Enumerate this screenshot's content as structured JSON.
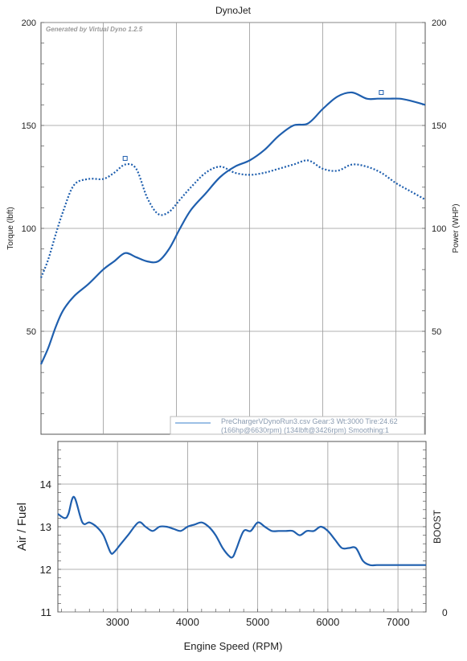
{
  "chart_data": [
    {
      "type": "line",
      "title": "DynoJet",
      "watermark": "Generated by Virtual Dyno 1.2.5",
      "ylabel_left": "Torque (lbft)",
      "ylabel_right": "Power (WHP)",
      "ylim": [
        0,
        200
      ],
      "xlim": [
        2150,
        7400
      ],
      "y_ticks": [
        "50",
        "100",
        "150",
        "200"
      ],
      "grid": true,
      "legend": {
        "placement": "bottom-right",
        "line1": "PreChargerVDynoRun3.csv Gear:3 Wt:3000 Tire:24.62",
        "line2": "(166hp@6630rpm) (134lbft@3426rpm) Smoothing:1"
      },
      "series": [
        {
          "style": "solid",
          "color": "#1f5fae",
          "x": [
            2150,
            2250,
            2350,
            2450,
            2600,
            2800,
            3000,
            3150,
            3300,
            3450,
            3600,
            3750,
            3900,
            4050,
            4200,
            4400,
            4600,
            4800,
            5000,
            5200,
            5400,
            5600,
            5800,
            6000,
            6200,
            6400,
            6600,
            6750,
            6900,
            7050,
            7200,
            7400
          ],
          "y": [
            34,
            42,
            52,
            60,
            67,
            73,
            80,
            84,
            88,
            86,
            84,
            84,
            90,
            100,
            109,
            117,
            125,
            130,
            133,
            138,
            145,
            150,
            151,
            158,
            164,
            166,
            163,
            163,
            163,
            163,
            162,
            160
          ]
        },
        {
          "style": "dotted",
          "color": "#1f5fae",
          "x": [
            2150,
            2250,
            2350,
            2450,
            2600,
            2800,
            3000,
            3150,
            3300,
            3450,
            3600,
            3750,
            3900,
            4050,
            4200,
            4400,
            4600,
            4800,
            5000,
            5200,
            5400,
            5600,
            5800,
            6000,
            6200,
            6400,
            6600,
            6800,
            7000,
            7200,
            7400
          ],
          "y": [
            76,
            85,
            97,
            108,
            121,
            124,
            124,
            127,
            131,
            129,
            115,
            107,
            108,
            114,
            120,
            127,
            130,
            127,
            126,
            127,
            129,
            131,
            133,
            129,
            128,
            131,
            130,
            127,
            122,
            118,
            114
          ]
        }
      ],
      "markers": [
        {
          "x": 3300,
          "y": 134
        },
        {
          "x": 6800,
          "y": 166
        }
      ]
    },
    {
      "type": "line",
      "ylabel_left": "Air / Fuel",
      "ylabel_right": "BOOST",
      "xlabel": "Engine Speed (RPM)",
      "ylim": [
        11,
        15
      ],
      "xlim": [
        2150,
        7400
      ],
      "y_ticks": [
        "11",
        "12",
        "13",
        "14"
      ],
      "right_ticks": [
        "0"
      ],
      "x_ticks": [
        "3000",
        "4000",
        "5000",
        "6000",
        "7000"
      ],
      "grid": true,
      "series": [
        {
          "style": "solid",
          "color": "#1f5fae",
          "x": [
            2150,
            2250,
            2300,
            2380,
            2500,
            2600,
            2700,
            2800,
            2900,
            2950,
            3050,
            3150,
            3300,
            3400,
            3500,
            3600,
            3700,
            3800,
            3900,
            4000,
            4100,
            4200,
            4300,
            4400,
            4500,
            4600,
            4650,
            4700,
            4800,
            4900,
            5000,
            5100,
            5200,
            5300,
            5400,
            5500,
            5600,
            5700,
            5800,
            5900,
            6000,
            6100,
            6200,
            6300,
            6400,
            6500,
            6600,
            6700,
            6800,
            7400
          ],
          "y": [
            13.3,
            13.2,
            13.3,
            13.7,
            13.1,
            13.1,
            13.0,
            12.8,
            12.4,
            12.4,
            12.6,
            12.8,
            13.1,
            13.0,
            12.9,
            13.0,
            13.0,
            12.95,
            12.9,
            13.0,
            13.05,
            13.1,
            13.0,
            12.8,
            12.5,
            12.3,
            12.3,
            12.5,
            12.9,
            12.9,
            13.1,
            13.0,
            12.9,
            12.9,
            12.9,
            12.9,
            12.8,
            12.9,
            12.9,
            13.0,
            12.9,
            12.7,
            12.5,
            12.5,
            12.5,
            12.2,
            12.1,
            12.1,
            12.1,
            12.1
          ]
        }
      ]
    }
  ]
}
